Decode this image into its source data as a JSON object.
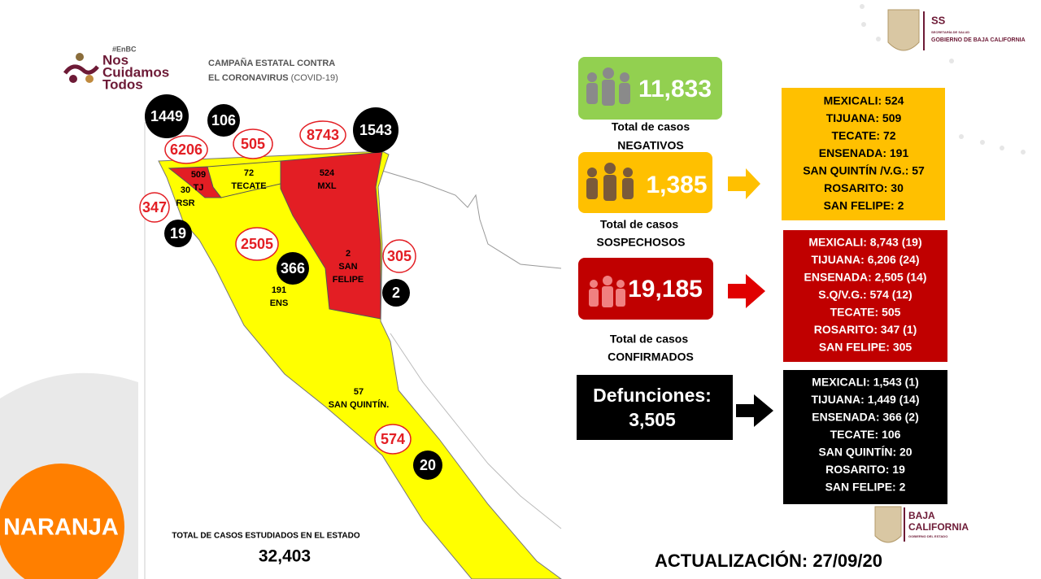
{
  "header": {
    "hashtag": "#EnBC",
    "logo_lines": [
      "Nos",
      "Cuidamos",
      "Todos"
    ],
    "campaign_line1": "CAMPAÑA ESTATAL CONTRA",
    "campaign_line2": "EL CORONAVIRUS",
    "campaign_note": "(COVID-19)",
    "agency_short": "SS",
    "agency_sub": "SECRETARÍA DE SALUD",
    "agency_name": "GOBIERNO DE BAJA CALIFORNIA"
  },
  "map": {
    "confirmed_circles": [
      "6206",
      "505",
      "8743",
      "347",
      "2505",
      "305",
      "574"
    ],
    "death_circles": [
      "1449",
      "106",
      "1543",
      "19",
      "366",
      "2",
      "20"
    ],
    "regions": [
      [
        "509",
        "TJ"
      ],
      [
        "30",
        "RSR"
      ],
      [
        "72",
        "TECATE"
      ],
      [
        "524",
        "MXL"
      ],
      [
        "2",
        "SAN",
        "FELIPE"
      ],
      [
        "191",
        "ENS"
      ],
      [
        "57",
        "SAN QUINTÍN."
      ]
    ]
  },
  "summary": {
    "negatives": {
      "value": "11,833",
      "label_line1": "Total de casos",
      "label_line2": "NEGATIVOS"
    },
    "suspected": {
      "value": "1,385",
      "label_line1": "Total de casos",
      "label_line2": "SOSPECHOSOS"
    },
    "confirmed": {
      "value": "19,185",
      "label_line1": "Total de casos",
      "label_line2": "CONFIRMADOS"
    },
    "deaths": {
      "label": "Defunciones:",
      "value": "3,505"
    }
  },
  "lists": {
    "suspected": [
      "MEXICALI: 524",
      "TIJUANA: 509",
      "TECATE: 72",
      "ENSENADA: 191",
      "SAN QUINTÍN /V.G.: 57",
      "ROSARITO: 30",
      "SAN FELIPE: 2"
    ],
    "confirmed": [
      "MEXICALI: 8,743 (19)",
      "TIJUANA: 6,206 (24)",
      "ENSENADA: 2,505 (14)",
      "S.Q/V.G.: 574 (12)",
      "TECATE: 505",
      "ROSARITO: 347 (1)",
      "SAN FELIPE: 305"
    ],
    "deaths": [
      "MEXICALI: 1,543 (1)",
      "TIJUANA: 1,449 (14)",
      "ENSENADA: 366 (2)",
      "TECATE: 106",
      "SAN QUINTÍN: 20",
      "ROSARITO: 19",
      "SAN FELIPE: 2"
    ]
  },
  "footer": {
    "status": "NARANJA",
    "total_label": "TOTAL DE CASOS ESTUDIADOS EN EL ESTADO",
    "total_value": "32,403",
    "update": "ACTUALIZACIÓN: 27/09/20",
    "state_line1": "BAJA",
    "state_line2": "CALIFORNIA",
    "state_sub": "GOBIERNO DEL ESTADO"
  }
}
